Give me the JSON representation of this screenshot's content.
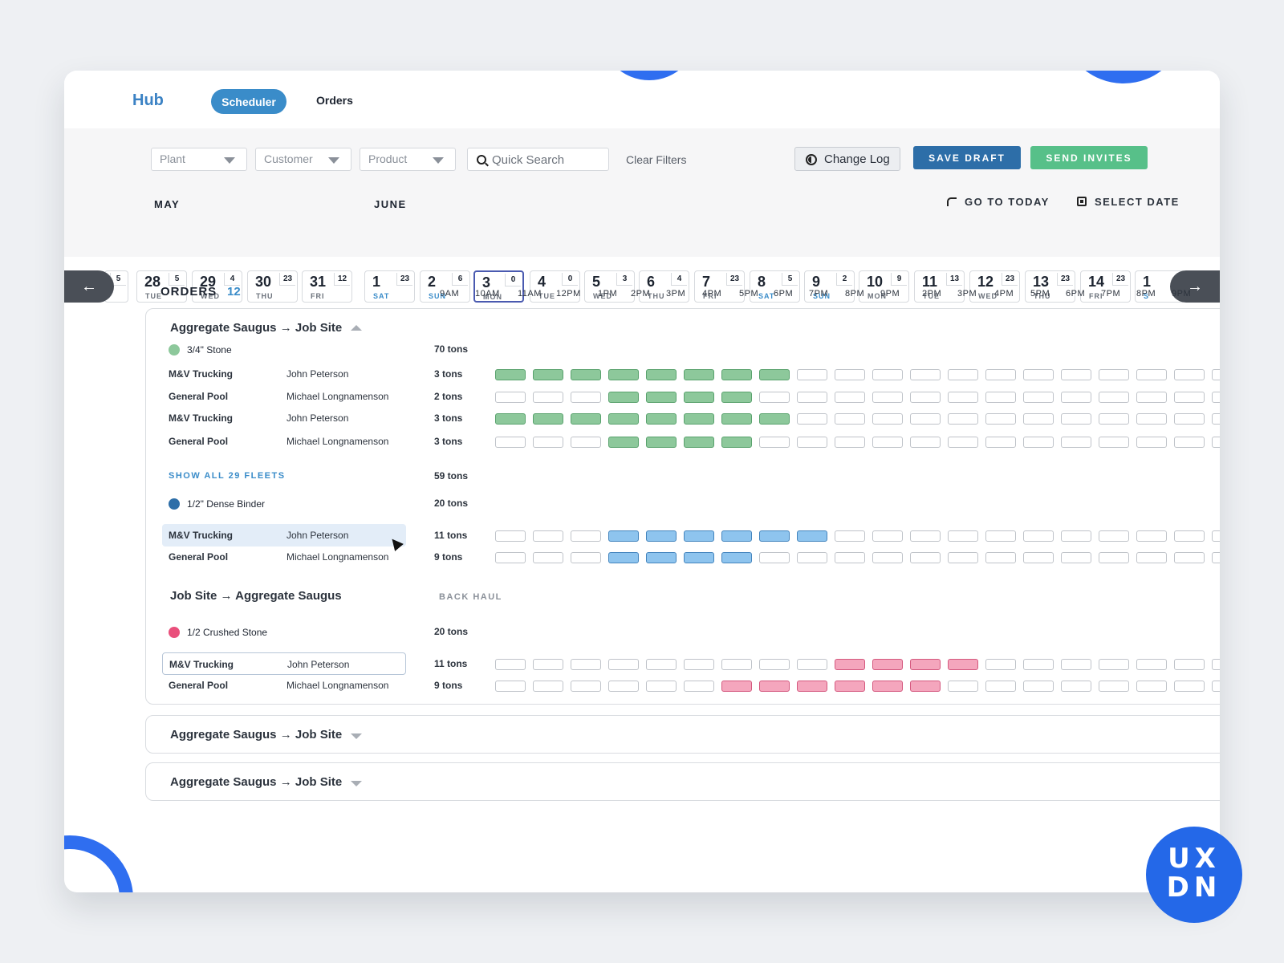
{
  "nav": {
    "logo": "Hub",
    "tab_scheduler": "Scheduler",
    "tab_orders": "Orders"
  },
  "filters": {
    "plant": "Plant",
    "customer": "Customer",
    "product": "Product",
    "search_placeholder": "Quick Search",
    "clear": "Clear Filters",
    "change_log": "Change Log",
    "save_draft": "SAVE DRAFT",
    "send_invites": "SEND INVITES"
  },
  "calendar": {
    "month_may": "MAY",
    "month_june": "JUNE",
    "go_today": "GO TO TODAY",
    "select_date": "SELECT DATE",
    "days": [
      {
        "num": "",
        "wd": "",
        "cnt": "5"
      },
      {
        "num": "28",
        "wd": "TUE",
        "cnt": "5"
      },
      {
        "num": "29",
        "wd": "WED",
        "cnt": "4"
      },
      {
        "num": "30",
        "wd": "THU",
        "cnt": "23"
      },
      {
        "num": "31",
        "wd": "FRI",
        "cnt": "12"
      },
      {
        "num": "1",
        "wd": "SAT",
        "cnt": "23"
      },
      {
        "num": "2",
        "wd": "SUN",
        "cnt": "6"
      },
      {
        "num": "3",
        "wd": "MON",
        "cnt": "0"
      },
      {
        "num": "4",
        "wd": "TUE",
        "cnt": "0"
      },
      {
        "num": "5",
        "wd": "WED",
        "cnt": "3"
      },
      {
        "num": "6",
        "wd": "THU",
        "cnt": "4"
      },
      {
        "num": "7",
        "wd": "FRI",
        "cnt": "23"
      },
      {
        "num": "8",
        "wd": "SAT",
        "cnt": "5"
      },
      {
        "num": "9",
        "wd": "SUN",
        "cnt": "2"
      },
      {
        "num": "10",
        "wd": "MON",
        "cnt": "9"
      },
      {
        "num": "11",
        "wd": "TUE",
        "cnt": "13"
      },
      {
        "num": "12",
        "wd": "WED",
        "cnt": "23"
      },
      {
        "num": "13",
        "wd": "THU",
        "cnt": "23"
      },
      {
        "num": "14",
        "wd": "FRI",
        "cnt": "23"
      },
      {
        "num": "1",
        "wd": "S",
        "cnt": ""
      }
    ]
  },
  "orders": {
    "title": "ORDERS",
    "count": "12",
    "hours": [
      "9AM",
      "10AM",
      "11AM",
      "12PM",
      "1PM",
      "2PM",
      "3PM",
      "4PM",
      "5PM",
      "6PM",
      "7PM",
      "8PM",
      "9PM",
      "2PM",
      "3PM",
      "4PM",
      "5PM",
      "6PM",
      "7PM",
      "8PM",
      "9PM"
    ]
  },
  "group1": {
    "title": "Aggregate Saugus → Job Site",
    "product1": {
      "name": "3/4\" Stone",
      "tons": "70 tons",
      "color": "#8dc89b",
      "fleets": [
        {
          "name": "M&V Trucking",
          "driver": "John Peterson",
          "tons": "3 tons",
          "slots": "GGGGGGGG..............."
        },
        {
          "name": "General Pool",
          "driver": "Michael Longnamenson",
          "tons": "2 tons",
          "slots": "...GGGG................"
        },
        {
          "name": "M&V Trucking",
          "driver": "John Peterson",
          "tons": "3 tons",
          "slots": "GGGGGGGG..............."
        },
        {
          "name": "General Pool",
          "driver": "Michael Longnamenson",
          "tons": "3 tons",
          "slots": "...GGGG................"
        }
      ],
      "show_all": "SHOW ALL 29 FLEETS",
      "show_all_tons": "59 tons"
    },
    "product2": {
      "name": "1/2\" Dense Binder",
      "tons": "20 tons",
      "color": "#2d6ea8",
      "fleets": [
        {
          "name": "M&V Trucking",
          "driver": "John Peterson",
          "tons": "11 tons",
          "slots": "...BBBBBB.............."
        },
        {
          "name": "General Pool",
          "driver": "Michael Longnamenson",
          "tons": "9 tons",
          "slots": "...BBBB................"
        }
      ]
    },
    "backhaul_title": "Job Site → Aggregate Saugus",
    "backhaul_label": "BACK HAUL",
    "product3": {
      "name": "1/2 Crushed Stone",
      "tons": "20 tons",
      "color": "#e94f7b",
      "fleets": [
        {
          "name": "M&V Trucking",
          "driver": "John Peterson",
          "tons": "11 tons",
          "slots": ".........PPPP.........."
        },
        {
          "name": "General Pool",
          "driver": "Michael Longnamenson",
          "tons": "9 tons",
          "slots": "......PPPPPP..........."
        }
      ]
    }
  },
  "group2": {
    "title": "Aggregate Saugus → Job Site"
  },
  "group3": {
    "title": "Aggregate Saugus → Job Site"
  },
  "badge": {
    "line1": "UX",
    "line2": "DN"
  }
}
